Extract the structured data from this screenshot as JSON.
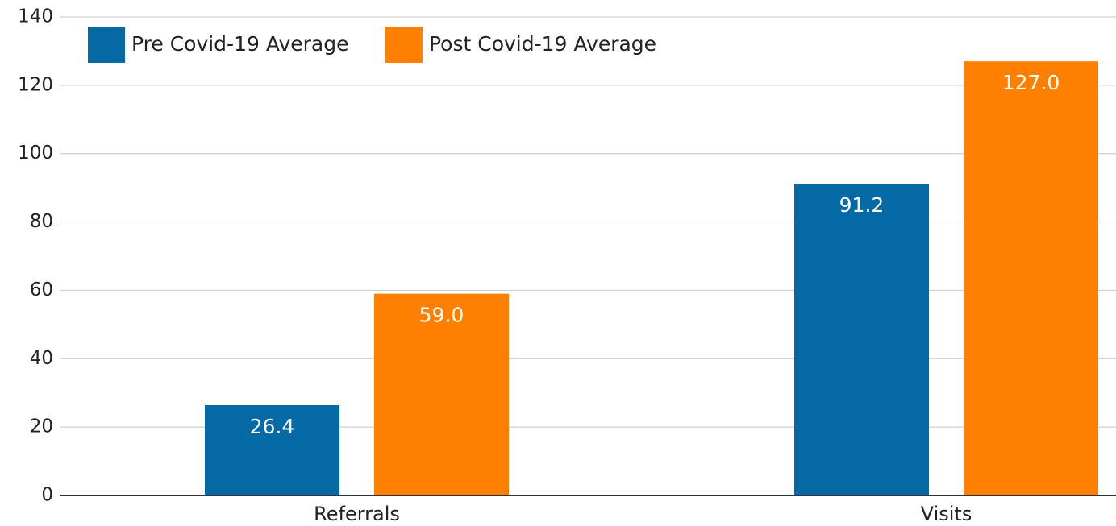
{
  "chart_data": {
    "type": "bar",
    "categories": [
      "Referrals",
      "Visits"
    ],
    "series": [
      {
        "name": "Pre Covid-19 Average",
        "color": "#0569a6",
        "values": [
          26.4,
          91.2
        ],
        "value_labels": [
          "26.4",
          "91.2"
        ]
      },
      {
        "name": "Post Covid-19 Average",
        "color": "#ff8000",
        "values": [
          59,
          127
        ],
        "value_labels": [
          "59.0",
          "127.0"
        ]
      }
    ],
    "ylim": [
      0,
      140
    ],
    "yticks": [
      0,
      20,
      40,
      60,
      80,
      100,
      120,
      140
    ],
    "grid": true
  }
}
